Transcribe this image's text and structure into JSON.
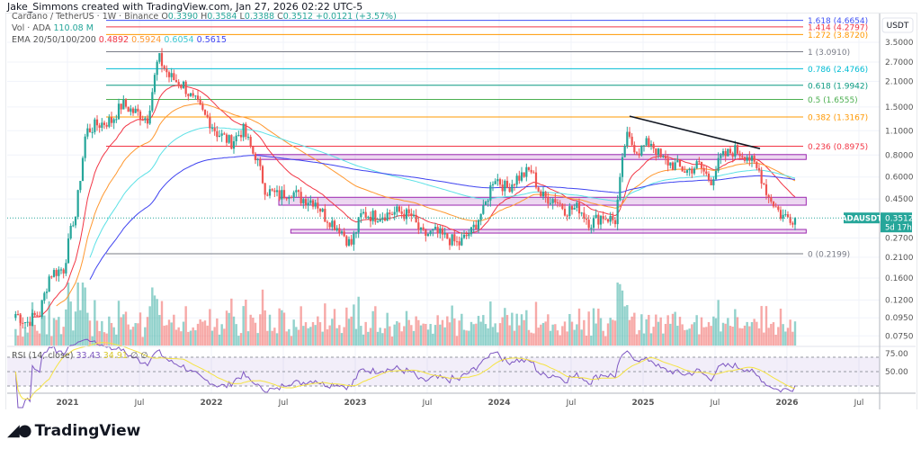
{
  "header": {
    "attribution": "Jake_Simmons created with TradingView.com, Jan 27, 2026 02:22 UTC-5"
  },
  "legend": {
    "symbol": "Cardano / TetherUS · 1W · Binance",
    "ohlc": {
      "o_label": "O",
      "o": "0.3390",
      "h_label": "H",
      "h": "0.3584",
      "l_label": "L",
      "l": "0.3388",
      "c_label": "C",
      "c": "0.3512",
      "change": "+0.0121 (+3.57%)"
    },
    "vol_label": "Vol · ADA",
    "vol_value": "110.08 M",
    "ema_label": "EMA 20/50/100/200",
    "ema_values": [
      "0.4892",
      "0.5924",
      "0.6054",
      "0.5615"
    ],
    "rsi_label": "RSI (14, close)",
    "rsi_value": "33.43",
    "rsi_ma_value": "34.91",
    "rsi_na1": "∅",
    "rsi_na2": "∅"
  },
  "colors": {
    "up": "#26a69a",
    "down": "#ef5350",
    "ema": [
      "#f23645",
      "#ff9830",
      "#5ce1e6",
      "#3f43f0"
    ],
    "rsi": "#7e57c2",
    "rsi_ma": "#f5e342",
    "zone": "#9c27b0"
  },
  "price_axis": {
    "unit": "USDT",
    "ticks": [
      "3.5000",
      "2.7000",
      "2.1000",
      "1.5000",
      "1.1000",
      "0.8000",
      "0.6000",
      "0.4500",
      "0.2700",
      "0.2100",
      "0.1600",
      "0.1200",
      "0.0950",
      "0.0750"
    ],
    "current": {
      "symbol": "ADAUSDT",
      "price": "0.3512",
      "countdown": "5d 17h"
    }
  },
  "rsi_axis": {
    "ticks": [
      "75.00",
      "50.00"
    ]
  },
  "time_axis": {
    "ticks": [
      "2021",
      "Jul",
      "2022",
      "Jul",
      "2023",
      "Jul",
      "2024",
      "Jul",
      "2025",
      "Jul",
      "2026",
      "Jul"
    ]
  },
  "fib_levels": [
    {
      "label": "1.618 (4.6654)",
      "price": 4.6654,
      "color": "#3f51f5"
    },
    {
      "label": "1.414 (4.2797)",
      "price": 4.2797,
      "color": "#f23645"
    },
    {
      "label": "1.272 (3.8720)",
      "price": 3.872,
      "color": "#ff9800"
    },
    {
      "label": "1 (3.0910)",
      "price": 3.091,
      "color": "#787b86"
    },
    {
      "label": "0.786 (2.4766)",
      "price": 2.4766,
      "color": "#00bcd4"
    },
    {
      "label": "0.618 (1.9942)",
      "price": 1.9942,
      "color": "#089981"
    },
    {
      "label": "0.5 (1.6555)",
      "price": 1.6555,
      "color": "#4caf50"
    },
    {
      "label": "0.382 (1.3167)",
      "price": 1.3167,
      "color": "#ff9800"
    },
    {
      "label": "0.236 (0.8975)",
      "price": 0.8975,
      "color": "#f23645"
    },
    {
      "label": "0 (0.2199)",
      "price": 0.2199,
      "color": "#787b86"
    }
  ],
  "zones": [
    {
      "low": 0.755,
      "high": 0.805,
      "start": "2022-04"
    },
    {
      "low": 0.415,
      "high": 0.46,
      "start": "2022-06"
    },
    {
      "low": 0.288,
      "high": 0.302,
      "start": "2022-07"
    }
  ],
  "trendline": {
    "from": {
      "date": "2024-11",
      "price": 1.33
    },
    "to": {
      "date": "2025-10",
      "price": 0.87
    }
  },
  "chart_data": {
    "type": "candlestick",
    "interval": "1W",
    "scale": "log",
    "grid": true,
    "x_range": [
      "2020-08",
      "2026-07"
    ],
    "monthly_closes": [
      [
        "2020-08",
        0.1
      ],
      [
        "2020-09",
        0.09
      ],
      [
        "2020-10",
        0.1
      ],
      [
        "2020-11",
        0.17
      ],
      [
        "2020-12",
        0.18
      ],
      [
        "2021-01",
        0.36
      ],
      [
        "2021-02",
        1.1
      ],
      [
        "2021-03",
        1.2
      ],
      [
        "2021-04",
        1.25
      ],
      [
        "2021-05",
        1.55
      ],
      [
        "2021-06",
        1.4
      ],
      [
        "2021-07",
        1.3
      ],
      [
        "2021-08",
        2.8
      ],
      [
        "2021-09",
        2.2
      ],
      [
        "2021-10",
        2.0
      ],
      [
        "2021-11",
        1.6
      ],
      [
        "2021-12",
        1.3
      ],
      [
        "2022-01",
        1.05
      ],
      [
        "2022-02",
        0.95
      ],
      [
        "2022-03",
        1.1
      ],
      [
        "2022-04",
        0.8
      ],
      [
        "2022-05",
        0.5
      ],
      [
        "2022-06",
        0.47
      ],
      [
        "2022-07",
        0.5
      ],
      [
        "2022-08",
        0.45
      ],
      [
        "2022-09",
        0.44
      ],
      [
        "2022-10",
        0.35
      ],
      [
        "2022-11",
        0.31
      ],
      [
        "2022-12",
        0.25
      ],
      [
        "2023-01",
        0.37
      ],
      [
        "2023-02",
        0.36
      ],
      [
        "2023-03",
        0.37
      ],
      [
        "2023-04",
        0.38
      ],
      [
        "2023-05",
        0.36
      ],
      [
        "2023-06",
        0.28
      ],
      [
        "2023-07",
        0.29
      ],
      [
        "2023-08",
        0.27
      ],
      [
        "2023-09",
        0.25
      ],
      [
        "2023-10",
        0.29
      ],
      [
        "2023-11",
        0.38
      ],
      [
        "2023-12",
        0.6
      ],
      [
        "2024-01",
        0.52
      ],
      [
        "2024-02",
        0.6
      ],
      [
        "2024-03",
        0.65
      ],
      [
        "2024-04",
        0.46
      ],
      [
        "2024-05",
        0.45
      ],
      [
        "2024-06",
        0.39
      ],
      [
        "2024-07",
        0.4
      ],
      [
        "2024-08",
        0.33
      ],
      [
        "2024-09",
        0.36
      ],
      [
        "2024-10",
        0.34
      ],
      [
        "2024-11",
        1.0
      ],
      [
        "2024-12",
        0.85
      ],
      [
        "2025-01",
        0.95
      ],
      [
        "2025-02",
        0.75
      ],
      [
        "2025-03",
        0.7
      ],
      [
        "2025-04",
        0.65
      ],
      [
        "2025-05",
        0.7
      ],
      [
        "2025-06",
        0.58
      ],
      [
        "2025-07",
        0.78
      ],
      [
        "2025-08",
        0.85
      ],
      [
        "2025-09",
        0.8
      ],
      [
        "2025-10",
        0.65
      ],
      [
        "2025-11",
        0.45
      ],
      [
        "2025-12",
        0.36
      ],
      [
        "2026-01",
        0.3512
      ]
    ],
    "indicators": [
      "EMA 20",
      "EMA 50",
      "EMA 100",
      "EMA 200",
      "Volume",
      "RSI 14 with MA"
    ]
  },
  "branding": {
    "logo_text": "TradingView"
  }
}
